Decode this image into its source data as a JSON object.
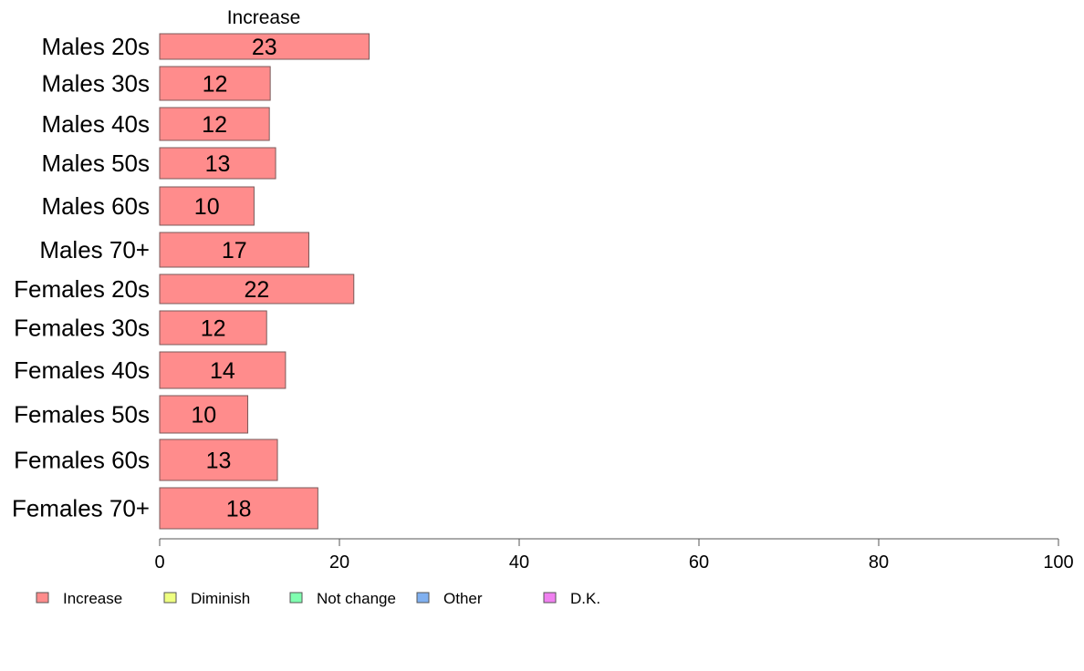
{
  "chart_data": {
    "type": "bar",
    "orientation": "horizontal",
    "title": "",
    "column_header": "Increase",
    "xlabel": "",
    "ylabel": "",
    "xlim": [
      0,
      100
    ],
    "x_ticks": [
      0,
      20,
      40,
      60,
      80,
      100
    ],
    "grid": false,
    "legend_position": "bottom-left",
    "categories": [
      "Males 20s",
      "Males 30s",
      "Males 40s",
      "Males 50s",
      "Males 60s",
      "Males 70+",
      "Females 20s",
      "Females 30s",
      "Females 40s",
      "Females 50s",
      "Females 60s",
      "Females 70+"
    ],
    "series": [
      {
        "name": "Increase",
        "color": "#ff8c8c",
        "values": [
          23.3,
          12.3,
          12.2,
          12.9,
          10.5,
          16.6,
          21.6,
          11.9,
          14.0,
          9.8,
          13.1,
          17.6
        ],
        "labels": [
          "23",
          "12",
          "12",
          "13",
          "10",
          "17",
          "22",
          "12",
          "14",
          "10",
          "13",
          "18"
        ]
      }
    ],
    "legend": [
      {
        "name": "Increase",
        "color": "#ff8c8c"
      },
      {
        "name": "Diminish",
        "color": "#eeff80"
      },
      {
        "name": "Not change",
        "color": "#80ffb0"
      },
      {
        "name": "Other",
        "color": "#80b0f0"
      },
      {
        "name": "D.K.",
        "color": "#f080f0"
      }
    ]
  }
}
